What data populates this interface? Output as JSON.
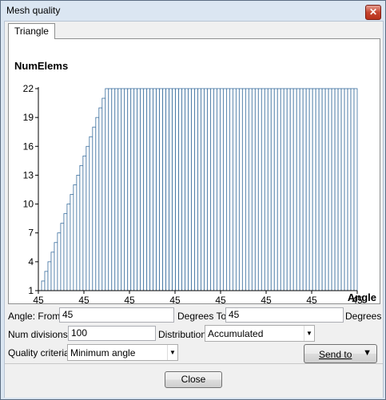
{
  "window": {
    "title": "Mesh quality",
    "close_glyph": "✕"
  },
  "tab": {
    "label": "Triangle"
  },
  "chart_data": {
    "type": "bar",
    "ylabel": "NumElems",
    "xlabel": "Angle",
    "yticks": [
      "1",
      "4",
      "7",
      "10",
      "13",
      "16",
      "19",
      "22"
    ],
    "ytick_values": [
      1,
      4,
      7,
      10,
      13,
      16,
      19,
      22
    ],
    "xticks": [
      "45",
      "45",
      "45",
      "45",
      "45",
      "45",
      "45",
      "45"
    ],
    "ylim": [
      1,
      22
    ],
    "bar_count": 100,
    "values": [
      1,
      2,
      3,
      4,
      5,
      6,
      7,
      8,
      9,
      10,
      11,
      12,
      13,
      14,
      15,
      16,
      17,
      18,
      19,
      20,
      21,
      22,
      22,
      22,
      22,
      22,
      22,
      22,
      22,
      22,
      22,
      22,
      22,
      22,
      22,
      22,
      22,
      22,
      22,
      22,
      22,
      22,
      22,
      22,
      22,
      22,
      22,
      22,
      22,
      22,
      22,
      22,
      22,
      22,
      22,
      22,
      22,
      22,
      22,
      22,
      22,
      22,
      22,
      22,
      22,
      22,
      22,
      22,
      22,
      22,
      22,
      22,
      22,
      22,
      22,
      22,
      22,
      22,
      22,
      22,
      22,
      22,
      22,
      22,
      22,
      22,
      22,
      22,
      22,
      22,
      22,
      22,
      22,
      22,
      22,
      22,
      22,
      22,
      22,
      22
    ],
    "bar_color": "#3a6e9e",
    "bar_fill": "#ffffff"
  },
  "form": {
    "angle_from_label": "Angle: From",
    "angle_from_value": "45",
    "degrees_to_label": "Degrees To",
    "angle_to_value": "45",
    "degrees_label": "Degrees",
    "num_divisions_label": "Num divisions:",
    "num_divisions_value": "100",
    "distribution_label": "Distribution:",
    "distribution_value": "Accumulated",
    "quality_criteria_label": "Quality criteria:",
    "quality_criteria_value": "Minimum angle",
    "send_to_label": "Send to",
    "close_label": "Close"
  },
  "icons": {
    "dropdown": "▼"
  }
}
